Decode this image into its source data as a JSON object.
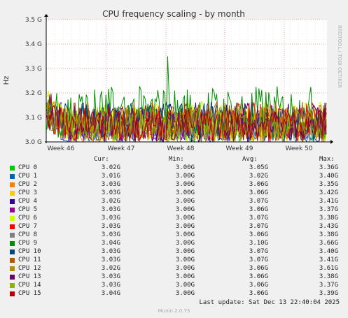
{
  "chart_data": {
    "type": "line",
    "title": "CPU frequency scaling - by month",
    "ylabel": "Hz",
    "side_text": "RRDTOOL / TOBI OETIKER",
    "ylim": [
      3.0,
      3.5
    ],
    "yticks": [
      "3.0 G",
      "3.1 G",
      "3.2 G",
      "3.3 G",
      "3.4 G",
      "3.5 G"
    ],
    "xticks": [
      "Week 46",
      "Week 47",
      "Week 48",
      "Week 49",
      "Week 50"
    ],
    "grid": true,
    "series": [
      {
        "name": "CPU 0",
        "color": "#00cc00",
        "cur": "3.02G",
        "min": "3.00G",
        "avg": "3.05G",
        "max": "3.36G"
      },
      {
        "name": "CPU 1",
        "color": "#0066b3",
        "cur": "3.01G",
        "min": "3.00G",
        "avg": "3.02G",
        "max": "3.40G"
      },
      {
        "name": "CPU 2",
        "color": "#ff8000",
        "cur": "3.03G",
        "min": "3.00G",
        "avg": "3.06G",
        "max": "3.35G"
      },
      {
        "name": "CPU 3",
        "color": "#ffcc00",
        "cur": "3.03G",
        "min": "3.00G",
        "avg": "3.06G",
        "max": "3.42G"
      },
      {
        "name": "CPU 4",
        "color": "#330099",
        "cur": "3.02G",
        "min": "3.00G",
        "avg": "3.07G",
        "max": "3.41G"
      },
      {
        "name": "CPU 5",
        "color": "#990099",
        "cur": "3.03G",
        "min": "3.00G",
        "avg": "3.06G",
        "max": "3.37G"
      },
      {
        "name": "CPU 6",
        "color": "#ccff00",
        "cur": "3.03G",
        "min": "3.00G",
        "avg": "3.07G",
        "max": "3.38G"
      },
      {
        "name": "CPU 7",
        "color": "#ff0000",
        "cur": "3.03G",
        "min": "3.00G",
        "avg": "3.07G",
        "max": "3.43G"
      },
      {
        "name": "CPU 8",
        "color": "#808080",
        "cur": "3.03G",
        "min": "3.00G",
        "avg": "3.06G",
        "max": "3.38G"
      },
      {
        "name": "CPU 9",
        "color": "#008f00",
        "cur": "3.04G",
        "min": "3.00G",
        "avg": "3.10G",
        "max": "3.66G"
      },
      {
        "name": "CPU 10",
        "color": "#00487d",
        "cur": "3.03G",
        "min": "3.00G",
        "avg": "3.07G",
        "max": "3.40G"
      },
      {
        "name": "CPU 11",
        "color": "#b35a00",
        "cur": "3.03G",
        "min": "3.00G",
        "avg": "3.07G",
        "max": "3.41G"
      },
      {
        "name": "CPU 12",
        "color": "#b38f00",
        "cur": "3.02G",
        "min": "3.00G",
        "avg": "3.06G",
        "max": "3.61G"
      },
      {
        "name": "CPU 13",
        "color": "#6b006b",
        "cur": "3.03G",
        "min": "3.00G",
        "avg": "3.06G",
        "max": "3.38G"
      },
      {
        "name": "CPU 14",
        "color": "#8fb300",
        "cur": "3.03G",
        "min": "3.00G",
        "avg": "3.06G",
        "max": "3.37G"
      },
      {
        "name": "CPU 15",
        "color": "#b30000",
        "cur": "3.04G",
        "min": "3.00G",
        "avg": "3.06G",
        "max": "3.39G"
      }
    ]
  },
  "legend": {
    "col_cur": "Cur:",
    "col_min": "Min:",
    "col_avg": "Avg:",
    "col_max": "Max:"
  },
  "last_update": "Last update: Sat Dec 13 22:40:04 2025",
  "footer": "Munin 2.0.73"
}
